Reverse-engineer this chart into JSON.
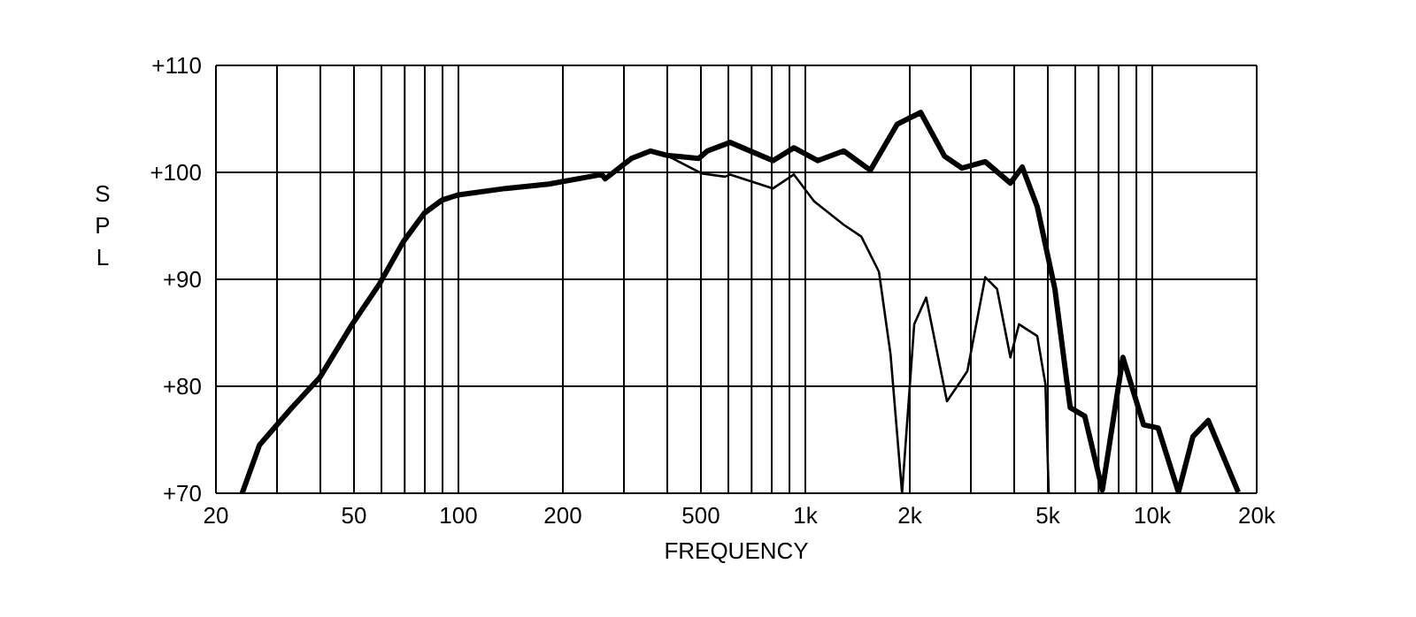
{
  "chart_data": {
    "type": "line",
    "xlabel": "FREQUENCY",
    "ylabel": "SPL",
    "log": "x",
    "grid": true,
    "marker": "none",
    "line_style": "solid",
    "legend": false,
    "xlim": [
      20,
      20000
    ],
    "ylim": [
      70,
      110
    ],
    "xticks": [
      20,
      {
        "value": 30,
        "label": null
      },
      {
        "value": 40,
        "label": null
      },
      50,
      {
        "value": 60,
        "label": null
      },
      {
        "value": 70,
        "label": null
      },
      {
        "value": 80,
        "label": null
      },
      {
        "value": 90,
        "label": null
      },
      100,
      200,
      {
        "value": 300,
        "label": null
      },
      {
        "value": 400,
        "label": null
      },
      500,
      {
        "value": 600,
        "label": null
      },
      {
        "value": 700,
        "label": null
      },
      {
        "value": 800,
        "label": null
      },
      {
        "value": 900,
        "label": null
      },
      {
        "value": 1000,
        "label": "1k"
      },
      {
        "value": 2000,
        "label": "2k"
      },
      {
        "value": 3000,
        "label": null
      },
      {
        "value": 4000,
        "label": null
      },
      {
        "value": 5000,
        "label": "5k"
      },
      {
        "value": 6000,
        "label": null
      },
      {
        "value": 7000,
        "label": null
      },
      {
        "value": 8000,
        "label": null
      },
      {
        "value": 9000,
        "label": null
      },
      {
        "value": 10000,
        "label": "10k"
      },
      {
        "value": 20000,
        "label": "20k"
      }
    ],
    "yticks": [
      {
        "value": 70,
        "label": "+70"
      },
      {
        "value": 80,
        "label": "+80"
      },
      {
        "value": 90,
        "label": "+90"
      },
      {
        "value": 100,
        "label": "+100"
      },
      {
        "value": 110,
        "label": "+110"
      }
    ],
    "series": [
      {
        "color": "#000000",
        "x": [
          23.8,
          26.7,
          30,
          33.1,
          39.8,
          49.4,
          59.3,
          69.3,
          79.8,
          89.6,
          100,
          137,
          182,
          259,
          265,
          315,
          358,
          398,
          493,
          522,
          607,
          807,
          927,
          1085,
          1290,
          1540,
          1840,
          2150,
          2520,
          2830,
          3300,
          3900,
          4220,
          4660,
          5240,
          5800,
          6390,
          7180,
          8230,
          9440,
          10400,
          11900,
          13100,
          14500,
          17700
        ],
        "values": [
          70,
          74.5,
          76.4,
          78,
          80.8,
          85.8,
          89.6,
          93.5,
          96.2,
          97.4,
          97.9,
          98.5,
          98.9,
          99.8,
          99.4,
          101.3,
          102,
          101.6,
          101.3,
          102,
          102.8,
          101.1,
          102.3,
          101.1,
          102,
          100.2,
          104.5,
          105.6,
          101.5,
          100.4,
          101,
          99,
          100.5,
          96.8,
          89.1,
          78,
          77.2,
          70.3,
          82.7,
          76.4,
          76.1,
          70.1,
          75.3,
          76.8,
          70.1
        ]
      },
      {
        "color": "#000000",
        "x": [
          315,
          358,
          398,
          502,
          587,
          607,
          807,
          927,
          1060,
          1290,
          1450,
          1630,
          1760,
          1900,
          2060,
          2230,
          2560,
          2930,
          3300,
          3570,
          3900,
          4130,
          4660,
          4920,
          5030
        ],
        "values": [
          101.3,
          102,
          101.6,
          99.9,
          99.6,
          99.8,
          98.5,
          99.8,
          97.3,
          95.1,
          94,
          90.7,
          83,
          70,
          85.8,
          88.3,
          78.6,
          81.4,
          90.2,
          89.1,
          82.7,
          85.8,
          84.7,
          80.2,
          70
        ]
      }
    ]
  }
}
